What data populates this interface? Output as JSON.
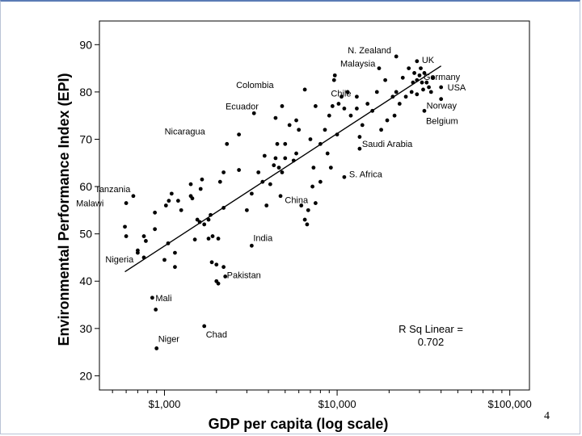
{
  "slide": {
    "page_number": "4"
  },
  "chart_data": {
    "type": "scatter",
    "xlabel": "GDP per capita (log scale)",
    "ylabel": "Environmental Performance Index (EPI)",
    "x_scale": "log",
    "xlim": [
      420,
      130000
    ],
    "ylim": [
      17,
      95
    ],
    "x_ticks": [
      1000,
      10000,
      100000
    ],
    "x_tick_labels": [
      "$1,000",
      "$10,000",
      "$100,000"
    ],
    "y_ticks": [
      20,
      30,
      40,
      50,
      60,
      70,
      80,
      90
    ],
    "grid": false,
    "legend": "none",
    "annotation": {
      "line1": "R Sq Linear =",
      "line2": "0.702"
    },
    "fit_line": {
      "x": [
        590,
        40000
      ],
      "y": [
        42,
        85.5
      ]
    },
    "labeled_points": [
      {
        "label": "N. Zealand",
        "x": 22000,
        "y": 87.5
      },
      {
        "label": "UK",
        "x": 29000,
        "y": 86.5
      },
      {
        "label": "Malaysia",
        "x": 17500,
        "y": 85
      },
      {
        "label": "Colombia",
        "x": 6500,
        "y": 80.5
      },
      {
        "label": "Germany",
        "x": 29000,
        "y": 82.5
      },
      {
        "label": "Chile",
        "x": 13000,
        "y": 79
      },
      {
        "label": "USA",
        "x": 40000,
        "y": 81
      },
      {
        "label": "Norway",
        "x": 40000,
        "y": 78.5
      },
      {
        "label": "Ecuador",
        "x": 4800,
        "y": 77
      },
      {
        "label": "Belgium",
        "x": 32000,
        "y": 76
      },
      {
        "label": "Nicaragua",
        "x": 2700,
        "y": 71
      },
      {
        "label": "Saudi Arabia",
        "x": 13500,
        "y": 68
      },
      {
        "label": "S. Africa",
        "x": 11000,
        "y": 62
      },
      {
        "label": "Tanzania",
        "x": 1100,
        "y": 58.5
      },
      {
        "label": "Malawi",
        "x": 600,
        "y": 56.5
      },
      {
        "label": "China",
        "x": 7500,
        "y": 56.5
      },
      {
        "label": "India",
        "x": 3200,
        "y": 47.5
      },
      {
        "label": "Nigeria",
        "x": 700,
        "y": 46
      },
      {
        "label": "Pakistan",
        "x": 2200,
        "y": 43
      },
      {
        "label": "Mali",
        "x": 850,
        "y": 36.5
      },
      {
        "label": "Chad",
        "x": 1700,
        "y": 30.5
      },
      {
        "label": "Niger",
        "x": 900,
        "y": 25.8
      }
    ],
    "other_points": [
      [
        590,
        51.5
      ],
      [
        600,
        49.5
      ],
      [
        660,
        58
      ],
      [
        700,
        46.5
      ],
      [
        760,
        49.5
      ],
      [
        780,
        48.5
      ],
      [
        760,
        45
      ],
      [
        880,
        54.5
      ],
      [
        880,
        51
      ],
      [
        890,
        34
      ],
      [
        1000,
        44.5
      ],
      [
        1020,
        56
      ],
      [
        1050,
        48
      ],
      [
        1060,
        57
      ],
      [
        1150,
        43
      ],
      [
        1150,
        46
      ],
      [
        1200,
        57
      ],
      [
        1250,
        55
      ],
      [
        1420,
        58
      ],
      [
        1420,
        60.5
      ],
      [
        1450,
        57.5
      ],
      [
        1500,
        48.8
      ],
      [
        1550,
        53
      ],
      [
        1600,
        52.5
      ],
      [
        1620,
        59.5
      ],
      [
        1650,
        61.5
      ],
      [
        1700,
        52
      ],
      [
        1800,
        53
      ],
      [
        1850,
        54
      ],
      [
        1800,
        49
      ],
      [
        1880,
        44
      ],
      [
        1900,
        49.5
      ],
      [
        2000,
        43.5
      ],
      [
        2050,
        49
      ],
      [
        2050,
        39.5
      ],
      [
        2250,
        41
      ],
      [
        2000,
        40
      ],
      [
        2200,
        63
      ],
      [
        2200,
        55.5
      ],
      [
        2100,
        61
      ],
      [
        2300,
        69
      ],
      [
        2700,
        63.5
      ],
      [
        3000,
        55
      ],
      [
        3200,
        58.5
      ],
      [
        3300,
        75.5
      ],
      [
        3500,
        63
      ],
      [
        3700,
        61
      ],
      [
        3800,
        66.5
      ],
      [
        3900,
        56
      ],
      [
        4100,
        60.5
      ],
      [
        4300,
        64.5
      ],
      [
        4400,
        66
      ],
      [
        4400,
        74.5
      ],
      [
        4500,
        69
      ],
      [
        4600,
        64
      ],
      [
        4700,
        58
      ],
      [
        4800,
        63
      ],
      [
        5000,
        66
      ],
      [
        5000,
        69
      ],
      [
        5300,
        73
      ],
      [
        5600,
        65.5
      ],
      [
        5800,
        67
      ],
      [
        5800,
        74
      ],
      [
        6000,
        72
      ],
      [
        6200,
        56
      ],
      [
        6500,
        53
      ],
      [
        6700,
        52
      ],
      [
        6800,
        55
      ],
      [
        7000,
        70
      ],
      [
        7200,
        60
      ],
      [
        7300,
        64
      ],
      [
        7500,
        77
      ],
      [
        8000,
        69
      ],
      [
        8000,
        61
      ],
      [
        8500,
        72
      ],
      [
        8800,
        67
      ],
      [
        9000,
        75
      ],
      [
        9200,
        64
      ],
      [
        9400,
        77
      ],
      [
        9600,
        82.5
      ],
      [
        9700,
        83.5
      ],
      [
        10000,
        71
      ],
      [
        10200,
        77.5
      ],
      [
        10600,
        79
      ],
      [
        11000,
        76.5
      ],
      [
        11500,
        80
      ],
      [
        12000,
        75
      ],
      [
        13000,
        76.5
      ],
      [
        13500,
        70.5
      ],
      [
        14000,
        73
      ],
      [
        15000,
        77.5
      ],
      [
        16000,
        76
      ],
      [
        17000,
        80
      ],
      [
        18000,
        72
      ],
      [
        19000,
        82.5
      ],
      [
        19500,
        74
      ],
      [
        21000,
        79
      ],
      [
        21500,
        75
      ],
      [
        22000,
        80
      ],
      [
        23000,
        77.5
      ],
      [
        24000,
        83
      ],
      [
        25000,
        79
      ],
      [
        26000,
        85
      ],
      [
        27000,
        80
      ],
      [
        27500,
        82
      ],
      [
        28000,
        84
      ],
      [
        29000,
        79.5
      ],
      [
        30000,
        83.5
      ],
      [
        30500,
        85
      ],
      [
        31000,
        82
      ],
      [
        31500,
        80.5
      ],
      [
        32000,
        84
      ],
      [
        33000,
        82
      ],
      [
        34000,
        81
      ],
      [
        35000,
        80
      ],
      [
        36000,
        83
      ]
    ]
  }
}
